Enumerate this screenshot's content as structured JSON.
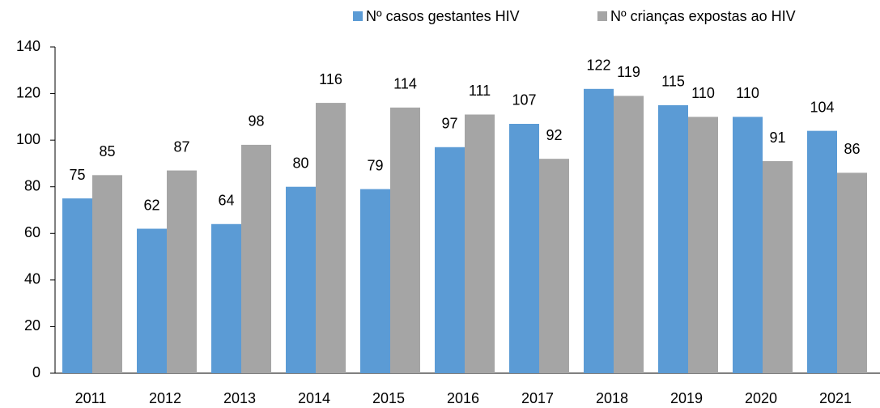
{
  "chart_data": {
    "type": "bar",
    "categories": [
      "2011",
      "2012",
      "2013",
      "2014",
      "2015",
      "2016",
      "2017",
      "2018",
      "2019",
      "2020",
      "2021"
    ],
    "series": [
      {
        "name": "Nº casos gestantes HIV",
        "color": "#5b9bd5",
        "values": [
          75,
          62,
          64,
          80,
          79,
          97,
          107,
          122,
          115,
          110,
          104
        ]
      },
      {
        "name": "Nº crianças expostas ao HIV",
        "color": "#a5a5a5",
        "values": [
          85,
          87,
          98,
          116,
          114,
          111,
          92,
          119,
          110,
          91,
          86
        ]
      }
    ],
    "ylim": [
      0,
      140
    ],
    "yticks": [
      0,
      20,
      40,
      60,
      80,
      100,
      120,
      140
    ],
    "grid": false,
    "legend": "top"
  }
}
